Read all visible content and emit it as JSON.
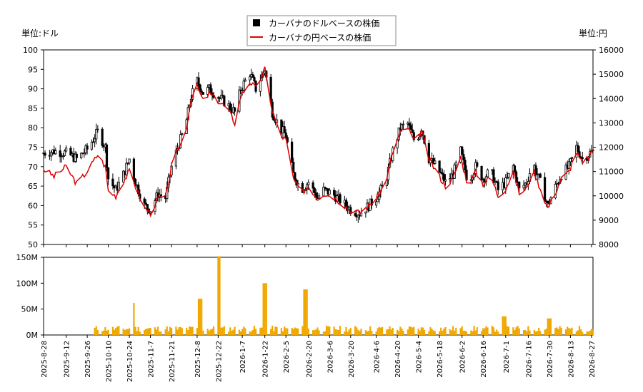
{
  "chart_data": [
    {
      "type": "candlestick+line",
      "legend": {
        "placement": "top-center",
        "items": [
          {
            "label": "カーバナのドルベースの株価",
            "color": "#000000",
            "marker": "square"
          },
          {
            "label": "カーバナの円ベースの株価",
            "color": "#dd0000",
            "marker": "line"
          }
        ]
      },
      "left_unit_label": "単位:ドル",
      "right_unit_label": "単位:円",
      "ylim_left": [
        50,
        100
      ],
      "yticks_left": [
        "50",
        "55",
        "60",
        "65",
        "70",
        "75",
        "80",
        "85",
        "90",
        "95",
        "100"
      ],
      "ylim_right": [
        8000,
        16000
      ],
      "yticks_right": [
        "8000",
        "9000",
        "10000",
        "11000",
        "12000",
        "13000",
        "14000",
        "15000",
        "16000"
      ],
      "date_range": [
        "2025-08-28",
        "2026-08-28"
      ],
      "usd_series": [
        [
          "2025-08-28",
          73.5
        ],
        [
          "2025-09-04",
          74.0
        ],
        [
          "2025-09-12",
          73.5
        ],
        [
          "2025-09-19",
          72.0
        ],
        [
          "2025-09-26",
          74.5
        ],
        [
          "2025-10-03",
          79.0
        ],
        [
          "2025-10-08",
          75.0
        ],
        [
          "2025-10-10",
          67.0
        ],
        [
          "2025-10-15",
          64.0
        ],
        [
          "2025-10-20",
          68.0
        ],
        [
          "2025-10-24",
          72.0
        ],
        [
          "2025-10-28",
          66.0
        ],
        [
          "2025-11-03",
          60.0
        ],
        [
          "2025-11-07",
          59.0
        ],
        [
          "2025-11-12",
          63.0
        ],
        [
          "2025-11-17",
          62.0
        ],
        [
          "2025-11-21",
          70.0
        ],
        [
          "2025-11-26",
          76.0
        ],
        [
          "2025-11-30",
          80.0
        ],
        [
          "2025-12-04",
          88.0
        ],
        [
          "2025-12-08",
          92.0
        ],
        [
          "2025-12-12",
          89.0
        ],
        [
          "2025-12-16",
          90.0
        ],
        [
          "2025-12-22",
          88.0
        ],
        [
          "2025-12-28",
          86.0
        ],
        [
          "2026-01-02",
          84.0
        ],
        [
          "2026-01-06",
          90.0
        ],
        [
          "2026-01-12",
          94.0
        ],
        [
          "2026-01-16",
          90.0
        ],
        [
          "2026-01-22",
          95.0
        ],
        [
          "2026-01-27",
          84.0
        ],
        [
          "2026-02-01",
          80.0
        ],
        [
          "2026-02-05",
          78.0
        ],
        [
          "2026-02-10",
          68.0
        ],
        [
          "2026-02-15",
          64.0
        ],
        [
          "2026-02-20",
          66.0
        ],
        [
          "2026-02-26",
          62.0
        ],
        [
          "2026-03-02",
          64.0
        ],
        [
          "2026-03-08",
          63.0
        ],
        [
          "2026-03-14",
          61.0
        ],
        [
          "2026-03-20",
          59.0
        ],
        [
          "2026-03-26",
          58.0
        ],
        [
          "2026-04-01",
          60.0
        ],
        [
          "2026-04-06",
          62.0
        ],
        [
          "2026-04-12",
          66.0
        ],
        [
          "2026-04-17",
          74.0
        ],
        [
          "2026-04-22",
          80.0
        ],
        [
          "2026-04-27",
          81.0
        ],
        [
          "2026-05-02",
          76.0
        ],
        [
          "2026-05-06",
          80.0
        ],
        [
          "2026-05-11",
          72.0
        ],
        [
          "2026-05-16",
          70.0
        ],
        [
          "2026-05-22",
          66.0
        ],
        [
          "2026-05-27",
          68.0
        ],
        [
          "2026-06-01",
          74.0
        ],
        [
          "2026-06-06",
          66.0
        ],
        [
          "2026-06-11",
          70.0
        ],
        [
          "2026-06-16",
          67.0
        ],
        [
          "2026-06-21",
          69.0
        ],
        [
          "2026-06-26",
          64.0
        ],
        [
          "2026-07-01",
          66.0
        ],
        [
          "2026-07-06",
          70.0
        ],
        [
          "2026-07-10",
          64.0
        ],
        [
          "2026-07-15",
          66.0
        ],
        [
          "2026-07-19",
          71.0
        ],
        [
          "2026-07-24",
          66.0
        ],
        [
          "2026-07-29",
          60.0
        ],
        [
          "2026-08-02",
          64.0
        ],
        [
          "2026-08-07",
          68.0
        ],
        [
          "2026-08-12",
          70.0
        ],
        [
          "2026-08-17",
          75.0
        ],
        [
          "2026-08-21",
          72.0
        ],
        [
          "2026-08-28",
          74.0
        ]
      ],
      "jpy_series": [
        [
          "2025-08-28",
          11100
        ],
        [
          "2025-09-04",
          10800
        ],
        [
          "2025-09-12",
          11200
        ],
        [
          "2025-09-19",
          10500
        ],
        [
          "2025-09-26",
          11000
        ],
        [
          "2025-10-03",
          11700
        ],
        [
          "2025-10-08",
          11200
        ],
        [
          "2025-10-10",
          10200
        ],
        [
          "2025-10-15",
          10000
        ],
        [
          "2025-10-20",
          10600
        ],
        [
          "2025-10-24",
          11000
        ],
        [
          "2025-10-28",
          10400
        ],
        [
          "2025-11-03",
          9500
        ],
        [
          "2025-11-07",
          9300
        ],
        [
          "2025-11-12",
          9900
        ],
        [
          "2025-11-17",
          9900
        ],
        [
          "2025-11-21",
          11200
        ],
        [
          "2025-11-26",
          12000
        ],
        [
          "2025-11-30",
          12500
        ],
        [
          "2025-12-04",
          14000
        ],
        [
          "2025-12-08",
          14500
        ],
        [
          "2025-12-12",
          13900
        ],
        [
          "2025-12-16",
          14200
        ],
        [
          "2025-12-22",
          13900
        ],
        [
          "2025-12-28",
          13600
        ],
        [
          "2026-01-02",
          13000
        ],
        [
          "2026-01-06",
          14100
        ],
        [
          "2026-01-12",
          14700
        ],
        [
          "2026-01-16",
          14400
        ],
        [
          "2026-01-22",
          15200
        ],
        [
          "2026-01-27",
          13500
        ],
        [
          "2026-02-01",
          12500
        ],
        [
          "2026-02-05",
          12300
        ],
        [
          "2026-02-10",
          10700
        ],
        [
          "2026-02-15",
          10100
        ],
        [
          "2026-02-20",
          10400
        ],
        [
          "2026-02-26",
          9900
        ],
        [
          "2026-03-02",
          10100
        ],
        [
          "2026-03-08",
          10000
        ],
        [
          "2026-03-14",
          9700
        ],
        [
          "2026-03-20",
          9400
        ],
        [
          "2026-03-26",
          9300
        ],
        [
          "2026-04-01",
          9600
        ],
        [
          "2026-04-06",
          9900
        ],
        [
          "2026-04-12",
          10500
        ],
        [
          "2026-04-17",
          11800
        ],
        [
          "2026-04-22",
          12600
        ],
        [
          "2026-04-27",
          12800
        ],
        [
          "2026-05-02",
          12100
        ],
        [
          "2026-05-06",
          12700
        ],
        [
          "2026-05-11",
          11500
        ],
        [
          "2026-05-16",
          11000
        ],
        [
          "2026-05-22",
          10400
        ],
        [
          "2026-05-27",
          10700
        ],
        [
          "2026-06-01",
          11600
        ],
        [
          "2026-06-06",
          10400
        ],
        [
          "2026-06-11",
          11000
        ],
        [
          "2026-06-16",
          10500
        ],
        [
          "2026-06-21",
          10800
        ],
        [
          "2026-06-26",
          10000
        ],
        [
          "2026-07-01",
          10300
        ],
        [
          "2026-07-06",
          11000
        ],
        [
          "2026-07-10",
          10100
        ],
        [
          "2026-07-15",
          10300
        ],
        [
          "2026-07-19",
          11100
        ],
        [
          "2026-07-24",
          10300
        ],
        [
          "2026-07-29",
          9500
        ],
        [
          "2026-08-02",
          10000
        ],
        [
          "2026-08-07",
          10700
        ],
        [
          "2026-08-12",
          11000
        ],
        [
          "2026-08-17",
          11800
        ],
        [
          "2026-08-21",
          11300
        ],
        [
          "2026-08-28",
          11800
        ]
      ]
    },
    {
      "type": "bar",
      "ylim": [
        0,
        150
      ],
      "yticks": [
        "0M",
        "50M",
        "100M",
        "150M"
      ],
      "bar_color": "#f0a800",
      "xtick_labels": [
        "2025-8-28",
        "2025-9-12",
        "2025-9-26",
        "2025-10-10",
        "2025-10-24",
        "2025-11-7",
        "2025-11-21",
        "2025-12-8",
        "2025-12-22",
        "2026-1-7",
        "2026-1-22",
        "2026-2-5",
        "2026-2-20",
        "2026-3-6",
        "2026-3-20",
        "2026-4-6",
        "2026-4-20",
        "2026-5-4",
        "2026-5-18",
        "2026-6-2",
        "2026-6-16",
        "2026-7-1",
        "2026-7-16",
        "2026-7-30",
        "2026-8-13",
        "2026-8-27"
      ],
      "volume_start": "2025-10-01",
      "volume_spikes": [
        [
          "2025-10-26",
          62
        ],
        [
          "2025-12-10",
          70
        ],
        [
          "2025-12-22",
          152
        ],
        [
          "2026-01-22",
          100
        ],
        [
          "2026-02-18",
          88
        ],
        [
          "2026-06-30",
          36
        ],
        [
          "2026-07-30",
          32
        ]
      ]
    }
  ]
}
